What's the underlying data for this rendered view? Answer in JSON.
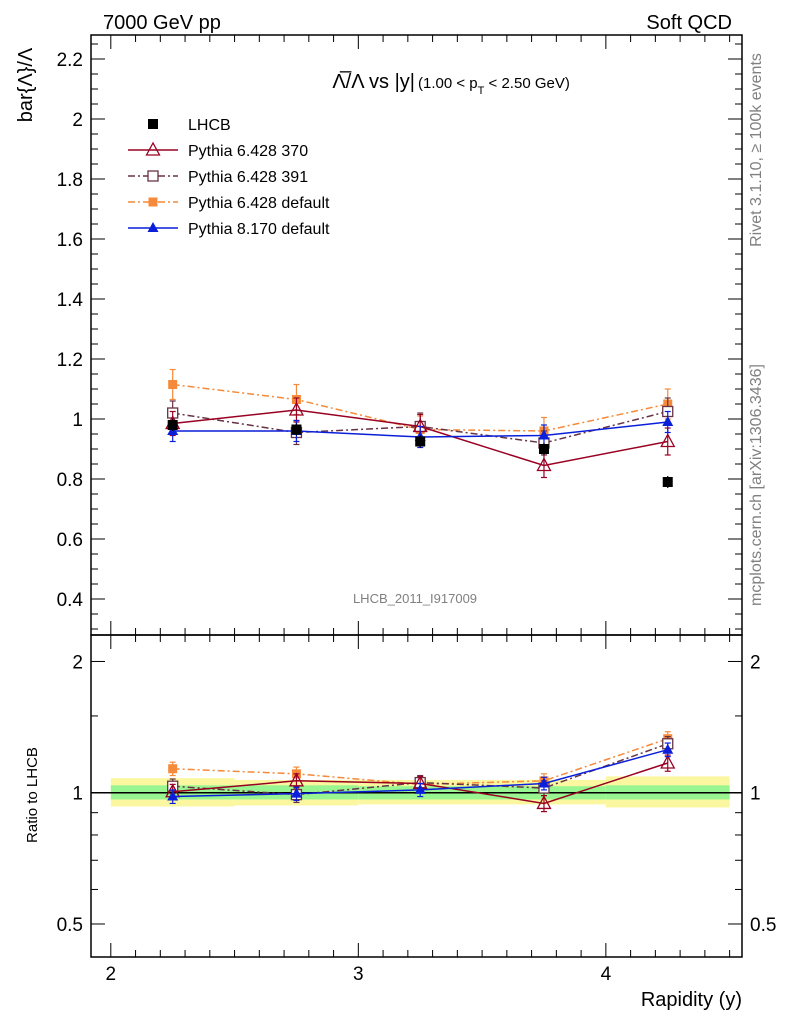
{
  "header": {
    "left": "7000 GeV pp",
    "right": "Soft QCD"
  },
  "side_labels": {
    "rivet": "Rivet 3.1.10, ≥ 100k events",
    "mcplots": "mcplots.cern.ch [arXiv:1306.3436]"
  },
  "watermark": "LHCB_2011_I917009",
  "colors": {
    "lhcb": "#000000",
    "p370": "#990022",
    "p391": "#663344",
    "p6def": "#f58a3a",
    "p8def": "#0a1fd9",
    "band_inner": "#98f58f",
    "band_outer": "#fbf7a0"
  },
  "chart_data": [
    {
      "type": "scatter",
      "title": "Λ̅/Λ vs |y|(1.00 < p_T < 2.50 GeV)",
      "title_main": "Λ̅/Λ vs |y|",
      "title_cut": "(1.00 < p",
      "title_sub": "T",
      "title_cut2": " < 2.50 GeV)",
      "ylabel": "bar{Λ}/Λ",
      "xlim": [
        1.92,
        4.55
      ],
      "ylim": [
        0.28,
        2.28
      ],
      "yticks": [
        "0.4",
        "0.6",
        "0.8",
        "1",
        "1.2",
        "1.4",
        "1.6",
        "1.8",
        "2",
        "2.2"
      ],
      "legend_position": "top-left",
      "series": [
        {
          "key": "lhcb",
          "name": "LHCB",
          "marker": "filled-square",
          "x": [
            2.25,
            2.75,
            3.25,
            3.75,
            4.25
          ],
          "y": [
            0.98,
            0.965,
            0.925,
            0.9,
            0.79
          ],
          "err": [
            0.02,
            0.02,
            0.02,
            0.02,
            0.02
          ]
        },
        {
          "key": "p370",
          "name": "Pythia 6.428 370",
          "marker": "open-triangle",
          "line": "solid",
          "x": [
            2.25,
            2.75,
            3.25,
            3.75,
            4.25
          ],
          "y": [
            0.985,
            1.03,
            0.975,
            0.845,
            0.925
          ],
          "err": [
            0.04,
            0.04,
            0.04,
            0.04,
            0.045
          ]
        },
        {
          "key": "p391",
          "name": "Pythia 6.428 391",
          "marker": "open-square",
          "line": "dashdot",
          "x": [
            2.25,
            2.75,
            3.25,
            3.75,
            4.25
          ],
          "y": [
            1.02,
            0.955,
            0.975,
            0.92,
            1.025
          ],
          "err": [
            0.04,
            0.04,
            0.045,
            0.04,
            0.045
          ]
        },
        {
          "key": "p6def",
          "name": "Pythia 6.428 default",
          "marker": "filled-square-small",
          "line": "dashdot",
          "x": [
            2.25,
            2.75,
            3.25,
            3.75,
            4.25
          ],
          "y": [
            1.115,
            1.065,
            0.965,
            0.96,
            1.05
          ],
          "err": [
            0.05,
            0.05,
            0.045,
            0.045,
            0.05
          ]
        },
        {
          "key": "p8def",
          "name": "Pythia 8.170 default",
          "marker": "filled-triangle",
          "line": "solid",
          "x": [
            2.25,
            2.75,
            3.25,
            3.75,
            4.25
          ],
          "y": [
            0.96,
            0.96,
            0.94,
            0.945,
            0.99
          ],
          "err": [
            0.035,
            0.035,
            0.035,
            0.035,
            0.035
          ]
        }
      ]
    },
    {
      "type": "line",
      "ylabel": "Ratio to LHCB",
      "xlabel": "Rapidity (y)",
      "xlim": [
        1.92,
        4.55
      ],
      "ylim": [
        0.42,
        2.3
      ],
      "ylog": true,
      "yticks": [
        "0.5",
        "1",
        "2"
      ],
      "xticks": [
        "2",
        "3",
        "4"
      ],
      "band": {
        "bins": [
          2.0,
          2.5,
          3.0,
          3.5,
          4.0,
          4.5
        ],
        "inner": [
          [
            0.965,
            1.04
          ],
          [
            0.965,
            1.04
          ],
          [
            0.965,
            1.035
          ],
          [
            0.965,
            1.035
          ],
          [
            0.965,
            1.04
          ]
        ],
        "outer": [
          [
            0.93,
            1.08
          ],
          [
            0.935,
            1.07
          ],
          [
            0.94,
            1.07
          ],
          [
            0.94,
            1.07
          ],
          [
            0.925,
            1.09
          ]
        ]
      },
      "series": [
        {
          "key": "p370",
          "name": "Pythia 6.428 370",
          "x": [
            2.25,
            2.75,
            3.25,
            3.75,
            4.25
          ],
          "y": [
            1.005,
            1.065,
            1.05,
            0.945,
            1.17
          ],
          "err": [
            0.04,
            0.04,
            0.04,
            0.04,
            0.05
          ]
        },
        {
          "key": "p391",
          "name": "Pythia 6.428 391",
          "x": [
            2.25,
            2.75,
            3.25,
            3.75,
            4.25
          ],
          "y": [
            1.035,
            0.99,
            1.055,
            1.025,
            1.295
          ],
          "err": [
            0.04,
            0.04,
            0.04,
            0.04,
            0.05
          ]
        },
        {
          "key": "p6def",
          "name": "Pythia 6.428 default",
          "x": [
            2.25,
            2.75,
            3.25,
            3.75,
            4.25
          ],
          "y": [
            1.135,
            1.105,
            1.045,
            1.065,
            1.33
          ],
          "err": [
            0.04,
            0.04,
            0.04,
            0.04,
            0.05
          ]
        },
        {
          "key": "p8def",
          "name": "Pythia 8.170 default",
          "x": [
            2.25,
            2.75,
            3.25,
            3.75,
            4.25
          ],
          "y": [
            0.98,
            0.995,
            1.015,
            1.05,
            1.255
          ],
          "err": [
            0.035,
            0.035,
            0.035,
            0.035,
            0.045
          ]
        }
      ]
    }
  ]
}
